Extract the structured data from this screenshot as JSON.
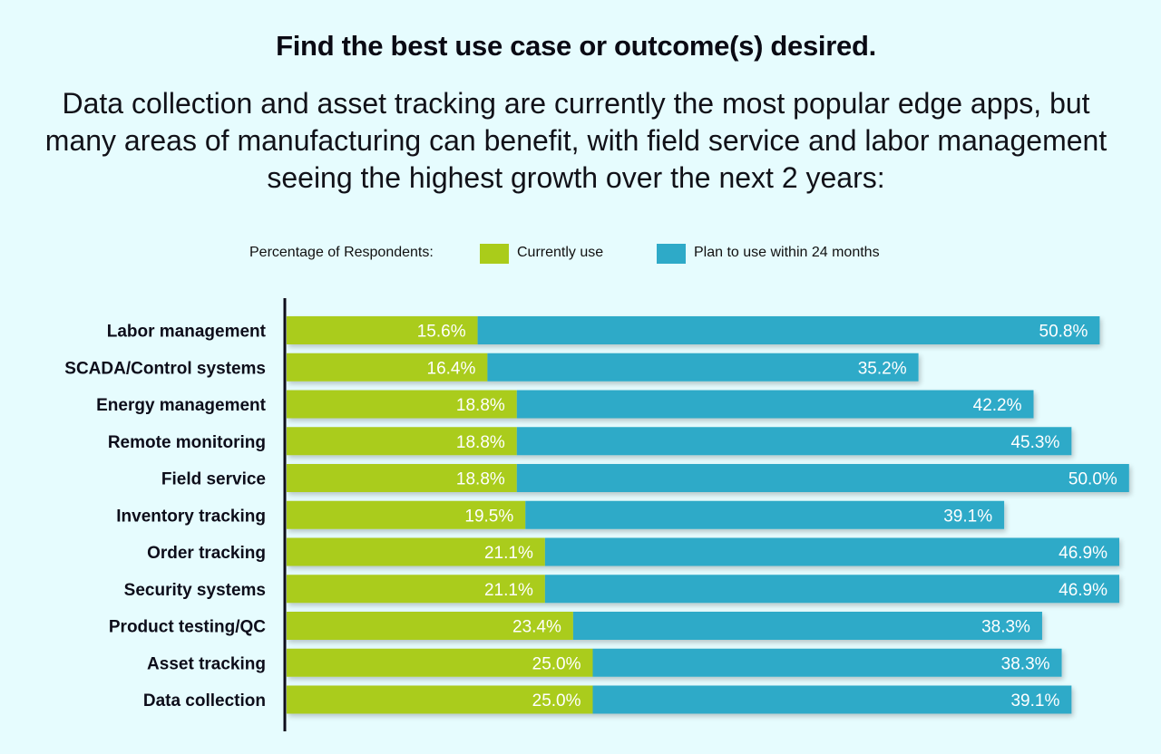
{
  "header": {
    "title": "Find the best use case or outcome(s) desired.",
    "subtitle": "Data collection and asset tracking are currently the most popular edge apps, but many areas of manufacturing can benefit, with field service and labor management seeing the highest growth over the next 2 years:"
  },
  "legend": {
    "title": "Percentage of Respondents:",
    "current_label": "Currently use",
    "plan_label": "Plan to use within 24 months"
  },
  "colors": {
    "current": "#aacc1a",
    "plan": "#2eaac8",
    "background": "#e6fcfe",
    "axis": "#0d0d1a"
  },
  "chart_data": {
    "type": "bar",
    "orientation": "horizontal",
    "stacked": true,
    "title": "Find the best use case or outcome(s) desired.",
    "legend_title": "Percentage of Respondents:",
    "legend_position": "top",
    "xlabel": "",
    "ylabel": "",
    "grid": false,
    "xlim": [
      0,
      70
    ],
    "categories": [
      "Labor management",
      "SCADA/Control systems",
      "Energy management",
      "Remote monitoring",
      "Field service",
      "Inventory tracking",
      "Order tracking",
      "Security systems",
      "Product testing/QC",
      "Asset tracking",
      "Data collection"
    ],
    "series": [
      {
        "name": "Currently use",
        "color": "#aacc1a",
        "values": [
          15.6,
          16.4,
          18.8,
          18.8,
          18.8,
          19.5,
          21.1,
          21.1,
          23.4,
          25.0,
          25.0
        ],
        "labels": [
          "15.6%",
          "16.4%",
          "18.8%",
          "18.8%",
          "18.8%",
          "19.5%",
          "21.1%",
          "21.1%",
          "23.4%",
          "25.0%",
          "25.0%"
        ]
      },
      {
        "name": "Plan to use within 24 months",
        "color": "#2eaac8",
        "values": [
          50.8,
          35.2,
          42.2,
          45.3,
          50.0,
          39.1,
          46.9,
          46.9,
          38.3,
          38.3,
          39.1
        ],
        "labels": [
          "50.8%",
          "35.2%",
          "42.2%",
          "45.3%",
          "50.0%",
          "39.1%",
          "46.9%",
          "46.9%",
          "38.3%",
          "38.3%",
          "39.1%"
        ]
      }
    ]
  }
}
